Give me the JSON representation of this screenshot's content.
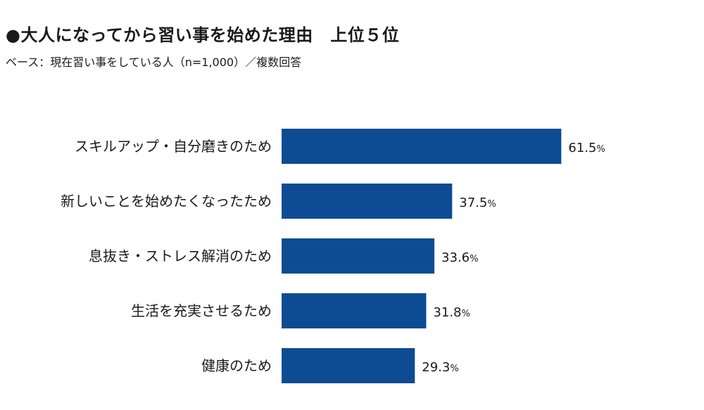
{
  "chart_data": {
    "type": "bar",
    "orientation": "horizontal",
    "title": "●大人になってから習い事を始めた理由　上位５位",
    "subtitle": "ベース：現在習い事をしている人（n=1,000）／複数回答",
    "categories": [
      "スキルアップ・自分磨きのため",
      "新しいことを始めたくなったため",
      "息抜き・ストレス解消のため",
      "生活を充実させるため",
      "健康のため"
    ],
    "values": [
      61.5,
      37.5,
      33.6,
      31.8,
      29.3
    ],
    "value_labels": [
      "61.5",
      "37.5",
      "33.6",
      "31.8",
      "29.3"
    ],
    "unit": "%",
    "xlim": [
      0,
      100
    ],
    "grid": false,
    "legend": "none",
    "bar_color": "#0d4c92"
  }
}
